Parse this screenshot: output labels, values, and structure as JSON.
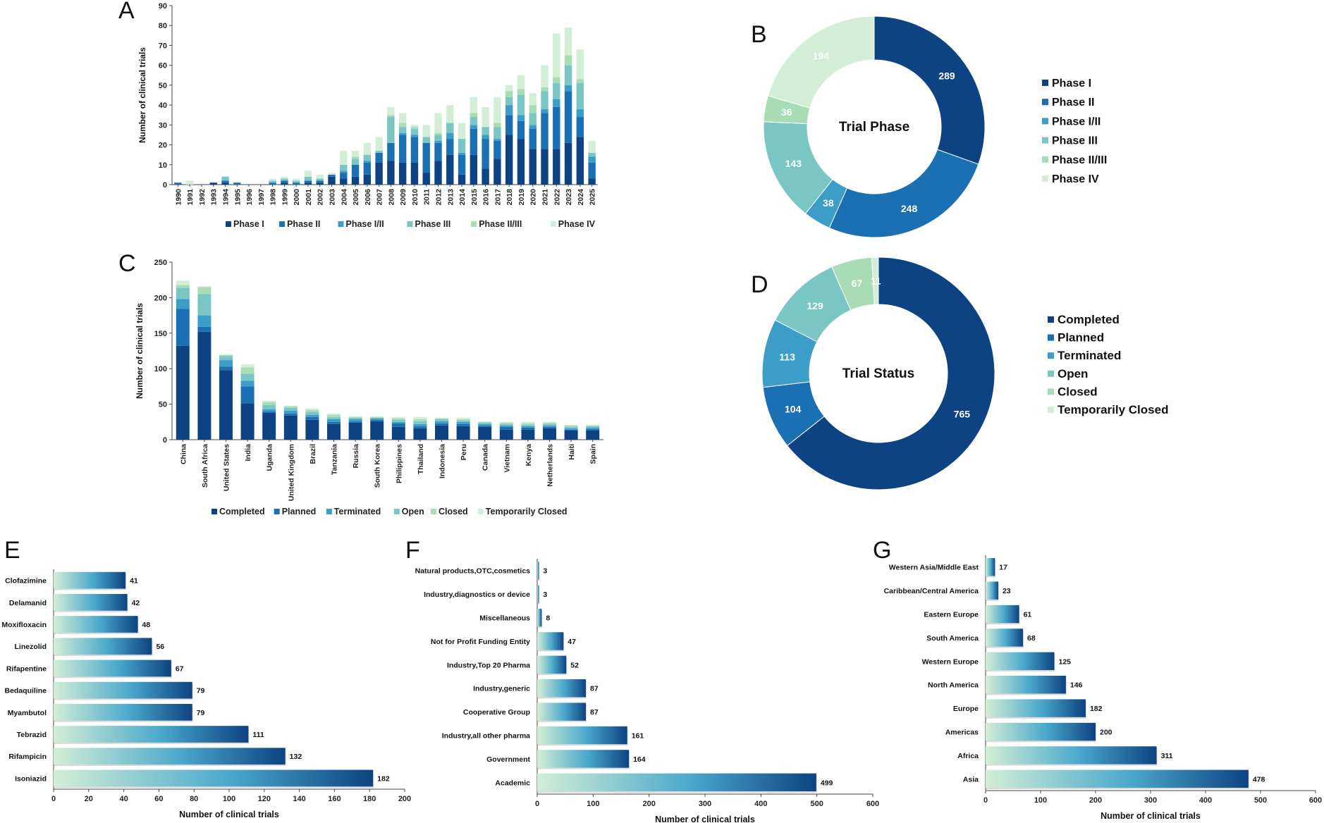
{
  "colors": {
    "phase": [
      "#0d4382",
      "#1b70b4",
      "#3c9dc9",
      "#79c6c5",
      "#a8dcb5",
      "#d3eed6"
    ],
    "status": [
      "#0d4382",
      "#1b70b4",
      "#3c9dc9",
      "#79c6c5",
      "#a8dcb5",
      "#d3eed6"
    ],
    "bar_gradient_start": "#d3eed6",
    "bar_gradient_mid": "#4aa8cc",
    "bar_gradient_end": "#0d4382",
    "axis": "#444444"
  },
  "panels": {
    "A": "A",
    "B": "B",
    "C": "C",
    "D": "D",
    "E": "E",
    "F": "F",
    "G": "G"
  },
  "chart_data": [
    {
      "id": "A",
      "type": "bar",
      "stacked": true,
      "title": "",
      "xlabel": "",
      "ylabel": "Number of clinical trials",
      "ylim": [
        0,
        90
      ],
      "yticks": [
        0,
        10,
        20,
        30,
        40,
        50,
        60,
        70,
        80,
        90
      ],
      "categories": [
        "1990",
        "1991",
        "1992",
        "1993",
        "1994",
        "1995",
        "1996",
        "1997",
        "1998",
        "1999",
        "2000",
        "2001",
        "2002",
        "2003",
        "2004",
        "2005",
        "2006",
        "2007",
        "2008",
        "2009",
        "2010",
        "2011",
        "2012",
        "2013",
        "2014",
        "2015",
        "2016",
        "2017",
        "2018",
        "2019",
        "2020",
        "2021",
        "2022",
        "2023",
        "2024",
        "2025"
      ],
      "series": [
        {
          "name": "Phase I",
          "values": [
            0,
            0,
            0,
            1,
            1,
            0,
            0,
            0,
            0,
            1,
            0,
            1,
            1,
            4,
            3,
            4,
            5,
            11,
            12,
            11,
            11,
            6,
            12,
            15,
            5,
            15,
            8,
            13,
            25,
            23,
            18,
            18,
            18,
            21,
            24,
            3
          ]
        },
        {
          "name": "Phase II",
          "values": [
            1,
            0,
            0,
            0,
            1,
            1,
            0,
            0,
            1,
            1,
            1,
            1,
            1,
            1,
            3,
            6,
            6,
            5,
            9,
            14,
            13,
            15,
            9,
            8,
            10,
            13,
            15,
            9,
            10,
            9,
            10,
            18,
            21,
            26,
            10,
            8
          ]
        },
        {
          "name": "Phase I/II",
          "values": [
            0,
            0,
            0,
            0,
            0,
            0,
            0,
            0,
            0,
            0,
            0,
            0,
            0,
            0,
            1,
            0,
            1,
            0,
            0,
            1,
            1,
            0,
            1,
            3,
            1,
            2,
            2,
            1,
            5,
            3,
            2,
            2,
            4,
            3,
            4,
            3
          ]
        },
        {
          "name": "Phase III",
          "values": [
            0,
            0,
            0,
            0,
            2,
            0,
            0,
            0,
            1,
            1,
            1,
            2,
            1,
            0,
            3,
            3,
            3,
            1,
            13,
            3,
            3,
            3,
            3,
            5,
            7,
            4,
            4,
            6,
            4,
            10,
            6,
            9,
            8,
            10,
            13,
            2
          ]
        },
        {
          "name": "Phase II/III",
          "values": [
            0,
            0,
            0,
            0,
            0,
            0,
            0,
            0,
            0,
            0,
            0,
            0,
            0,
            0,
            0,
            1,
            0,
            0,
            1,
            2,
            1,
            0,
            1,
            0,
            0,
            2,
            0,
            2,
            3,
            3,
            4,
            2,
            3,
            5,
            2,
            0
          ]
        },
        {
          "name": "Phase IV",
          "values": [
            0,
            2,
            0,
            0,
            0,
            0,
            0,
            0,
            1,
            1,
            1,
            3,
            2,
            1,
            7,
            3,
            6,
            7,
            4,
            5,
            1,
            6,
            10,
            9,
            8,
            8,
            10,
            13,
            3,
            7,
            6,
            11,
            22,
            14,
            15,
            6
          ]
        }
      ],
      "legend": "bottom"
    },
    {
      "id": "B",
      "type": "pie",
      "donut": true,
      "center_label": "Trial Phase",
      "labels": [
        "Phase I",
        "Phase II",
        "Phase I/II",
        "Phase III",
        "Phase II/III",
        "Phase IV"
      ],
      "values": [
        289,
        248,
        38,
        143,
        36,
        194
      ],
      "legend": "right"
    },
    {
      "id": "C",
      "type": "bar",
      "stacked": true,
      "title": "",
      "xlabel": "",
      "ylabel": "Number of clinical trials",
      "ylim": [
        0,
        250
      ],
      "yticks": [
        0,
        50,
        100,
        150,
        200,
        250
      ],
      "categories": [
        "China",
        "South Africa",
        "United States",
        "India",
        "Uganda",
        "United Kingdom",
        "Brazil",
        "Tanzania",
        "Russia",
        "South Korea",
        "Philippines",
        "Thailand",
        "Indonesia",
        "Peru",
        "Canada",
        "Vietnam",
        "Kenya",
        "Netherlands",
        "Haiti",
        "Spain"
      ],
      "series": [
        {
          "name": "Completed",
          "values": [
            132,
            152,
            98,
            51,
            38,
            34,
            28,
            22,
            24,
            26,
            18,
            16,
            20,
            19,
            18,
            14,
            14,
            16,
            13,
            13
          ]
        },
        {
          "name": "Planned",
          "values": [
            52,
            7,
            5,
            24,
            2,
            3,
            4,
            3,
            2,
            2,
            5,
            3,
            3,
            3,
            2,
            4,
            3,
            2,
            1,
            2
          ]
        },
        {
          "name": "Terminated",
          "values": [
            14,
            16,
            9,
            8,
            3,
            4,
            3,
            4,
            3,
            2,
            2,
            3,
            3,
            3,
            2,
            2,
            2,
            2,
            2,
            2
          ]
        },
        {
          "name": "Open",
          "values": [
            16,
            30,
            6,
            10,
            6,
            4,
            4,
            3,
            2,
            1,
            3,
            4,
            3,
            2,
            2,
            2,
            2,
            2,
            2,
            2
          ]
        },
        {
          "name": "Closed",
          "values": [
            4,
            10,
            1,
            9,
            4,
            2,
            3,
            3,
            1,
            1,
            2,
            3,
            1,
            2,
            1,
            2,
            2,
            2,
            2,
            1
          ]
        },
        {
          "name": "Temporarily Closed",
          "values": [
            6,
            1,
            1,
            4,
            2,
            1,
            2,
            2,
            1,
            1,
            2,
            3,
            1,
            2,
            1,
            1,
            2,
            1,
            1,
            1
          ]
        }
      ],
      "legend": "bottom"
    },
    {
      "id": "D",
      "type": "pie",
      "donut": true,
      "center_label": "Trial Status",
      "labels": [
        "Completed",
        "Planned",
        "Terminated",
        "Open",
        "Closed",
        "Temporarily Closed"
      ],
      "values": [
        765,
        104,
        113,
        129,
        67,
        11
      ],
      "legend": "right"
    },
    {
      "id": "E",
      "type": "bar",
      "orientation": "horizontal",
      "xlabel": "Number of clinical trials",
      "ylabel": "",
      "xlim": [
        0,
        200
      ],
      "xticks": [
        0,
        20,
        40,
        60,
        80,
        100,
        120,
        140,
        160,
        180,
        200
      ],
      "categories": [
        "Clofazimine",
        "Delamanid",
        "Moxifloxacin",
        "Linezolid",
        "Rifapentine",
        "Bedaquiline",
        "Myambutol",
        "Tebrazid",
        "Rifampicin",
        "Isoniazid"
      ],
      "values": [
        41,
        42,
        48,
        56,
        67,
        79,
        79,
        111,
        132,
        182
      ]
    },
    {
      "id": "F",
      "type": "bar",
      "orientation": "horizontal",
      "xlabel": "Number of clinical trials",
      "ylabel": "",
      "xlim": [
        0,
        600
      ],
      "xticks": [
        0,
        100,
        200,
        300,
        400,
        500,
        600
      ],
      "categories": [
        "Natural products,OTC,cosmetics",
        "Industry,diagnostics or device",
        "Miscellaneous",
        "Not for Profit Funding Entity",
        "Industry,Top 20 Pharma",
        "Industry,generic",
        "Cooperative Group",
        "Industry,all other pharma",
        "Government",
        "Academic"
      ],
      "values": [
        3,
        3,
        8,
        47,
        52,
        87,
        87,
        161,
        164,
        499
      ]
    },
    {
      "id": "G",
      "type": "bar",
      "orientation": "horizontal",
      "xlabel": "Number of clinical trials",
      "ylabel": "",
      "xlim": [
        0,
        600
      ],
      "xticks": [
        0,
        100,
        200,
        300,
        400,
        500,
        600
      ],
      "categories": [
        "Western Asia/Middle East",
        "Caribbean/Central America",
        "Eastern Europe",
        "South America",
        "Western Europe",
        "North America",
        "Europe",
        "Americas",
        "Africa",
        "Asia"
      ],
      "values": [
        17,
        23,
        61,
        68,
        125,
        146,
        182,
        200,
        311,
        478
      ]
    }
  ]
}
